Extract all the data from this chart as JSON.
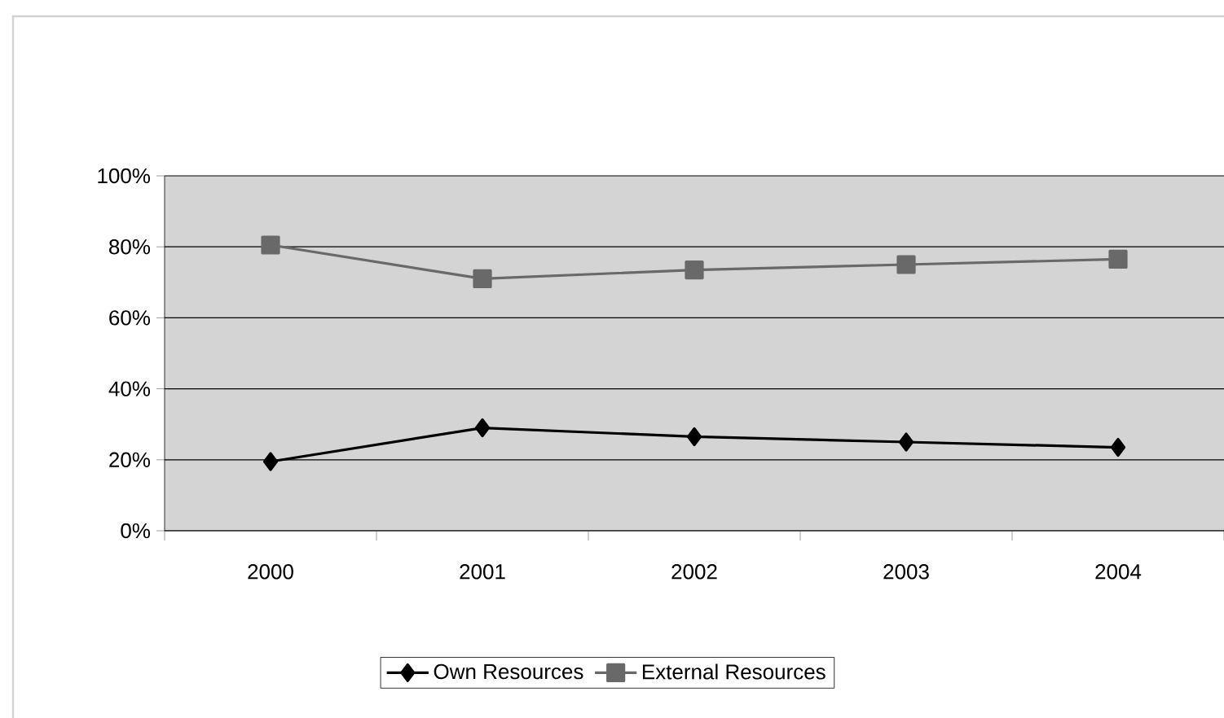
{
  "chart_data": {
    "type": "line",
    "categories": [
      "2000",
      "2001",
      "2002",
      "2003",
      "2004"
    ],
    "series": [
      {
        "name": "Own Resources",
        "color": "#000000",
        "marker": "diamond",
        "values": [
          19.5,
          29,
          26.5,
          25,
          23.5
        ]
      },
      {
        "name": "External Resources",
        "color": "#696969",
        "marker": "square",
        "values": [
          80.5,
          71,
          73.5,
          75,
          76.5
        ]
      }
    ],
    "ylim": [
      0,
      100
    ],
    "yticks": [
      {
        "value": 0,
        "label": "0%"
      },
      {
        "value": 20,
        "label": "20%"
      },
      {
        "value": 40,
        "label": "40%"
      },
      {
        "value": 60,
        "label": "60%"
      },
      {
        "value": 80,
        "label": "80%"
      },
      {
        "value": 100,
        "label": "100%"
      }
    ],
    "grid": "y",
    "legend": "bottom"
  }
}
